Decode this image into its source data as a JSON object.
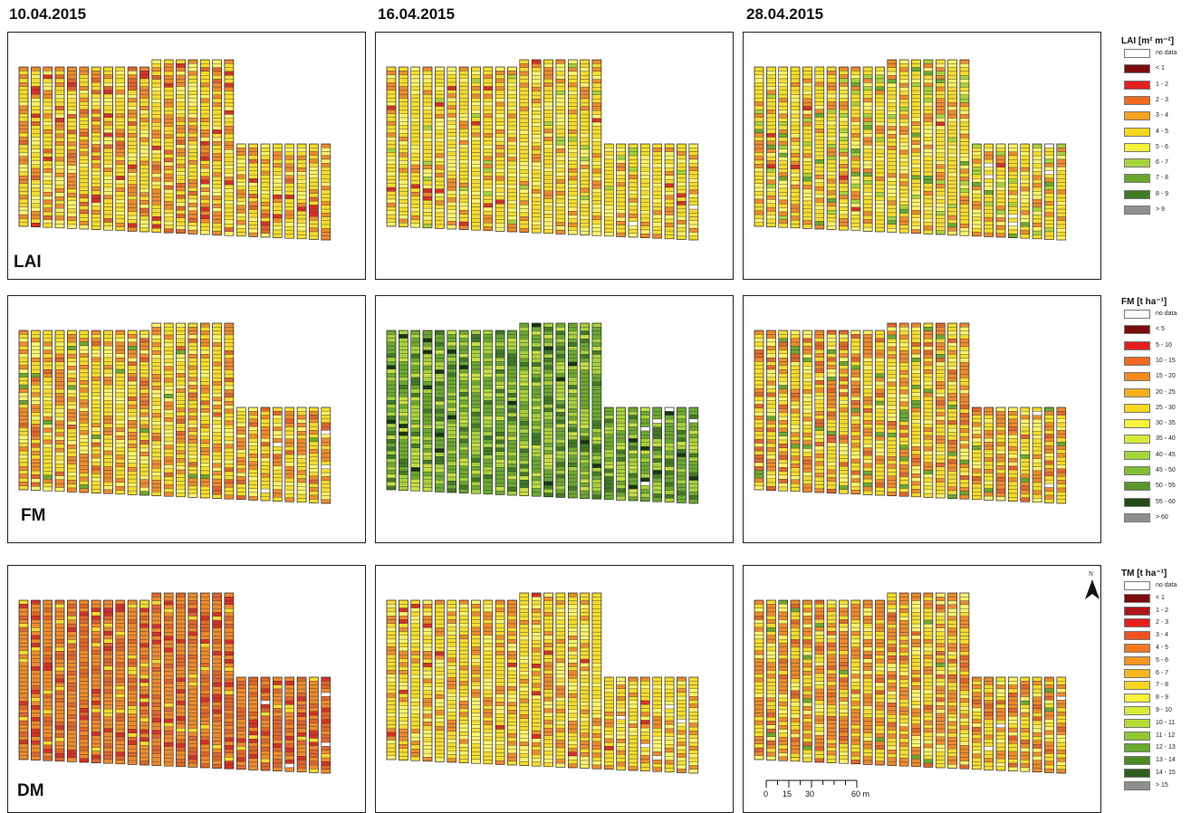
{
  "dates": [
    "10.04.2015",
    "16.04.2015",
    "28.04.2015"
  ],
  "rows": [
    {
      "key": "lai",
      "label": "LAI",
      "palette": "lai"
    },
    {
      "key": "fm",
      "label": "FM",
      "palette": "fm"
    },
    {
      "key": "dm",
      "label": "DM",
      "palette": "dm"
    }
  ],
  "panels": [
    {
      "row": "lai",
      "date": "10.04.2015",
      "weights": {
        "yellow": 0.45,
        "lightyellow": 0.2,
        "orange": 0.25,
        "darkorange": 0.07,
        "red": 0.03
      }
    },
    {
      "row": "lai",
      "date": "16.04.2015",
      "weights": {
        "yellow": 0.55,
        "lightyellow": 0.25,
        "orange": 0.15,
        "lightgreen": 0.03,
        "red": 0.02
      }
    },
    {
      "row": "lai",
      "date": "28.04.2015",
      "weights": {
        "yellow": 0.5,
        "lightyellow": 0.2,
        "orange": 0.18,
        "lightgreen": 0.08,
        "green": 0.03,
        "red": 0.01
      }
    },
    {
      "row": "fm",
      "date": "10.04.2015",
      "weights": {
        "yellow": 0.45,
        "lightyellow": 0.2,
        "orange": 0.28,
        "darkorange": 0.05,
        "green": 0.02
      }
    },
    {
      "row": "fm",
      "date": "16.04.2015",
      "weights": {
        "green": 0.4,
        "lightgreen": 0.3,
        "darkgreen": 0.15,
        "yellowgreen": 0.12,
        "verydark": 0.03
      }
    },
    {
      "row": "fm",
      "date": "28.04.2015",
      "weights": {
        "yellow": 0.4,
        "lightyellow": 0.15,
        "orange": 0.3,
        "darkorange": 0.1,
        "green": 0.05
      }
    },
    {
      "row": "dm",
      "date": "10.04.2015",
      "weights": {
        "orange": 0.55,
        "darkorange": 0.25,
        "red": 0.12,
        "yellow": 0.08
      }
    },
    {
      "row": "dm",
      "date": "16.04.2015",
      "weights": {
        "yellow": 0.5,
        "lightyellow": 0.25,
        "orange": 0.23,
        "red": 0.02
      }
    },
    {
      "row": "dm",
      "date": "28.04.2015",
      "weights": {
        "yellow": 0.35,
        "lightyellow": 0.15,
        "orange": 0.4,
        "darkorange": 0.08,
        "green": 0.02
      }
    }
  ],
  "fill_colors": {
    "yellow": "#f6dc2a",
    "lightyellow": "#fbf36a",
    "orange": "#ee8a2a",
    "darkorange": "#e0652a",
    "red": "#d63024",
    "lightgreen": "#a7d23a",
    "yellowgreen": "#c6e040",
    "green": "#6aa82e",
    "darkgreen": "#3f7a22",
    "verydark": "#17360f"
  },
  "legends": [
    {
      "key": "lai",
      "title": "LAI [m² m⁻²]",
      "items": [
        {
          "label": "no data",
          "color": "#ffffff"
        },
        {
          "label": "< 1",
          "color": "#7b0c0c"
        },
        {
          "label": "1 - 2",
          "color": "#e61e1e"
        },
        {
          "label": "2 - 3",
          "color": "#f26a1f"
        },
        {
          "label": "3 - 4",
          "color": "#f7a21f"
        },
        {
          "label": "4 - 5",
          "color": "#f7d71f"
        },
        {
          "label": "5 - 6",
          "color": "#f8f23a"
        },
        {
          "label": "6 - 7",
          "color": "#a4d63a"
        },
        {
          "label": "7 - 8",
          "color": "#6aa82e"
        },
        {
          "label": "8 - 9",
          "color": "#3f7a22"
        },
        {
          "label": "> 9",
          "color": "#8f8f8f"
        }
      ]
    },
    {
      "key": "fm",
      "title": "FM [t ha⁻¹]",
      "items": [
        {
          "label": "no data",
          "color": "#ffffff"
        },
        {
          "label": "< 5",
          "color": "#7b0c0c"
        },
        {
          "label": "5 - 10",
          "color": "#e61e1e"
        },
        {
          "label": "10 - 15",
          "color": "#f26a1f"
        },
        {
          "label": "15 - 20",
          "color": "#f58a1f"
        },
        {
          "label": "20 - 25",
          "color": "#f7b01f"
        },
        {
          "label": "25 - 30",
          "color": "#f7d71f"
        },
        {
          "label": "30 - 35",
          "color": "#f8f23a"
        },
        {
          "label": "35 - 40",
          "color": "#d7ea3a"
        },
        {
          "label": "40 - 45",
          "color": "#a4d63a"
        },
        {
          "label": "45 - 50",
          "color": "#7fbf30"
        },
        {
          "label": "50 - 55",
          "color": "#5a9628"
        },
        {
          "label": "55 - 60",
          "color": "#234d15"
        },
        {
          "label": "> 60",
          "color": "#8f8f8f"
        }
      ]
    },
    {
      "key": "tm",
      "title": "TM [t ha⁻¹]",
      "items": [
        {
          "label": "no data",
          "color": "#ffffff"
        },
        {
          "label": "< 1",
          "color": "#7b0c0c"
        },
        {
          "label": "1 - 2",
          "color": "#b01515"
        },
        {
          "label": "2 - 3",
          "color": "#e61e1e"
        },
        {
          "label": "3 - 4",
          "color": "#f0531f"
        },
        {
          "label": "4 - 5",
          "color": "#f2781f"
        },
        {
          "label": "5 - 6",
          "color": "#f5961f"
        },
        {
          "label": "6 - 7",
          "color": "#f7b81f"
        },
        {
          "label": "7 - 8",
          "color": "#f7d71f"
        },
        {
          "label": "8 - 9",
          "color": "#f8f23a"
        },
        {
          "label": "9 - 10",
          "color": "#d7ea3a"
        },
        {
          "label": "10 - 11",
          "color": "#b4dc36"
        },
        {
          "label": "11 - 12",
          "color": "#8fc830"
        },
        {
          "label": "12 - 13",
          "color": "#6aa82e"
        },
        {
          "label": "13 - 14",
          "color": "#4d8826"
        },
        {
          "label": "14 - 15",
          "color": "#2d5e1a"
        },
        {
          "label": "> 15",
          "color": "#8f8f8f"
        }
      ]
    }
  ],
  "north_label": "N",
  "scale": {
    "ticks": [
      "0",
      "15",
      "30",
      "60 m"
    ]
  }
}
